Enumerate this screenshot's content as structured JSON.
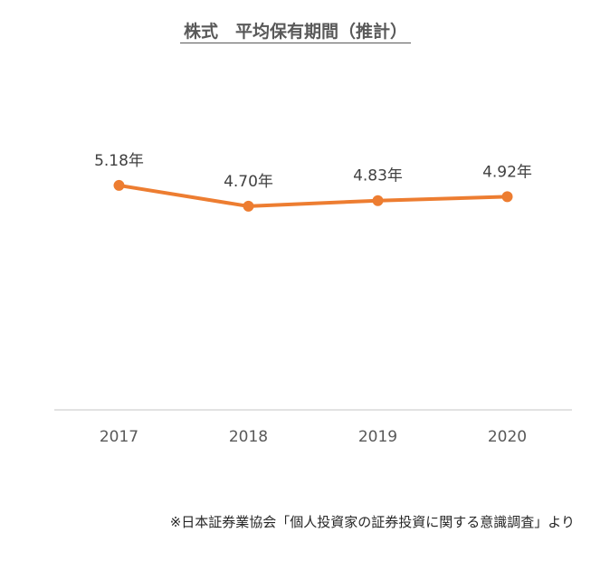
{
  "title": "株式　平均保有期間（推計）",
  "source": "※日本証券業協会「個人投資家の証券投資に関する意識調査」より",
  "colors": {
    "line": "#ED7D31",
    "axis": "#D9D9D9",
    "label": "#404040",
    "tick": "#595959"
  },
  "chart_data": {
    "type": "line",
    "title": "株式　平均保有期間（推計）",
    "categories": [
      "2017",
      "2018",
      "2019",
      "2020"
    ],
    "series": [
      {
        "values": [
          5.18,
          4.7,
          4.83,
          4.92
        ],
        "labels": [
          "5.18年",
          "4.70年",
          "4.83年",
          "4.92年"
        ]
      }
    ],
    "ylim": [
      0,
      9
    ],
    "grid": false,
    "legend": "none"
  }
}
